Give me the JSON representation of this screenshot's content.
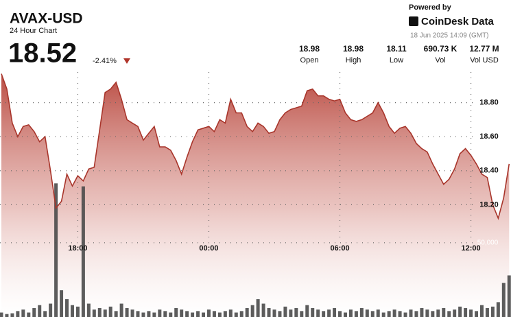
{
  "header": {
    "title": "AVAX-USD",
    "subtitle": "24 Hour Chart",
    "price": "18.52",
    "change": "-2.41%"
  },
  "branding": {
    "powered_by": "Powered by",
    "logo": "CoinDesk Data",
    "timestamp": "18 Jun 2025 14:09 (GMT)"
  },
  "stats": [
    {
      "value": "18.98",
      "label": "Open"
    },
    {
      "value": "18.98",
      "label": "High"
    },
    {
      "value": "18.11",
      "label": "Low"
    },
    {
      "value": "690.73 K",
      "label": "Vol"
    },
    {
      "value": "12.77 M",
      "label": "Vol USD"
    }
  ],
  "chart_data": {
    "type": "area",
    "categories": [
      null,
      null,
      null,
      null,
      null,
      null,
      null,
      null,
      null,
      null,
      null,
      null,
      null,
      null,
      "18:00",
      null,
      null,
      null,
      null,
      null,
      null,
      null,
      null,
      null,
      null,
      null,
      null,
      null,
      null,
      null,
      null,
      null,
      null,
      null,
      null,
      null,
      null,
      null,
      "00:00",
      null,
      null,
      null,
      null,
      null,
      null,
      null,
      null,
      null,
      null,
      null,
      null,
      null,
      null,
      null,
      null,
      null,
      null,
      null,
      null,
      null,
      null,
      null,
      "06:00",
      null,
      null,
      null,
      null,
      null,
      null,
      null,
      null,
      null,
      null,
      null,
      null,
      null,
      null,
      null,
      null,
      null,
      null,
      null,
      null,
      null,
      null,
      null,
      "12:00",
      null,
      null,
      null,
      null,
      null,
      null,
      null
    ],
    "series": [
      {
        "color": "#a8352b",
        "values": [
          18.97,
          18.88,
          18.68,
          18.6,
          18.66,
          18.67,
          18.63,
          18.57,
          18.6,
          18.4,
          18.18,
          18.22,
          18.38,
          18.31,
          18.37,
          18.34,
          18.41,
          18.42,
          18.64,
          18.86,
          18.88,
          18.92,
          18.82,
          18.7,
          18.68,
          18.66,
          18.58,
          18.62,
          18.66,
          18.54,
          18.54,
          18.52,
          18.46,
          18.38,
          18.48,
          18.57,
          18.64,
          18.65,
          18.66,
          18.63,
          18.7,
          18.68,
          18.82,
          18.74,
          18.74,
          18.66,
          18.63,
          18.68,
          18.66,
          18.62,
          18.63,
          18.7,
          18.74,
          18.76,
          18.77,
          18.78,
          18.87,
          18.88,
          18.84,
          18.84,
          18.82,
          18.81,
          18.82,
          18.74,
          18.7,
          18.69,
          18.7,
          18.72,
          18.74,
          18.8,
          18.74,
          18.66,
          18.62,
          18.65,
          18.66,
          18.62,
          18.56,
          18.53,
          18.51,
          18.44,
          18.38,
          18.32,
          18.35,
          18.41,
          18.5,
          18.53,
          18.49,
          18.44,
          18.38,
          18.36,
          18.2,
          18.12,
          18.24,
          18.44
        ]
      },
      {
        "type": "bar",
        "axis": "y2",
        "color": "#4a4a4a",
        "values": [
          3000,
          2000,
          2500,
          4000,
          5000,
          3000,
          6000,
          8000,
          4000,
          9000,
          90000,
          18000,
          12000,
          8000,
          7000,
          88000,
          9000,
          5000,
          6000,
          5000,
          7000,
          4000,
          9000,
          6000,
          5000,
          4000,
          3000,
          4000,
          3000,
          5000,
          4000,
          3000,
          6000,
          5000,
          4000,
          3000,
          4000,
          3000,
          5000,
          4000,
          3000,
          4000,
          5000,
          3000,
          4000,
          6000,
          8000,
          12000,
          9000,
          6000,
          5000,
          4000,
          7000,
          5000,
          6000,
          4000,
          8000,
          6000,
          5000,
          4000,
          5000,
          6000,
          4000,
          3000,
          5000,
          4000,
          6000,
          5000,
          4000,
          5000,
          3000,
          4000,
          5000,
          4000,
          3000,
          5000,
          4000,
          6000,
          5000,
          4000,
          5000,
          6000,
          4000,
          5000,
          7000,
          6000,
          5000,
          4000,
          8000,
          6000,
          7000,
          10000,
          23000,
          28000
        ]
      }
    ],
    "ylim": [
      17.54,
      18.98
    ],
    "yticks": [
      {
        "value": 18.8,
        "label": "18.80"
      },
      {
        "value": 18.6,
        "label": "18.60"
      },
      {
        "value": 18.4,
        "label": "18.40"
      },
      {
        "value": 18.2,
        "label": "18.20"
      }
    ],
    "y2lim": [
      0,
      165000
    ],
    "y2ticks": [
      {
        "value": 50000,
        "label": "50,000"
      }
    ],
    "grid": true
  }
}
